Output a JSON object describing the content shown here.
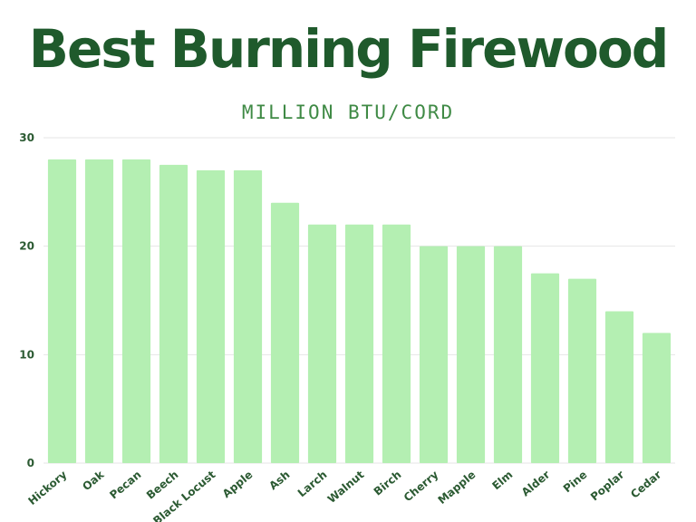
{
  "chart_data": {
    "type": "bar",
    "title": "Best Burning Firewood",
    "subtitle": "MILLION BTU/CORD",
    "categories": [
      "Hickory",
      "Oak",
      "Pecan",
      "Beech",
      "Black Locust",
      "Apple",
      "Ash",
      "Larch",
      "Walnut",
      "Birch",
      "Cherry",
      "Mapple",
      "Elm",
      "Alder",
      "Pine",
      "Poplar",
      "Cedar"
    ],
    "values": [
      28,
      28,
      28,
      27.5,
      27,
      27,
      24,
      22,
      22,
      22,
      20,
      20,
      20,
      17.5,
      17,
      14,
      12
    ],
    "yticks": [
      "0",
      "10",
      "20",
      "30"
    ],
    "ylim": [
      0,
      30
    ],
    "grid": true,
    "legend": "none",
    "colors": {
      "bar": "#b4efb2",
      "title": "#1f5a2c",
      "subtitle": "#3f8a45",
      "ticks": "#2b5a32",
      "grid": "#e6e6e6"
    }
  }
}
